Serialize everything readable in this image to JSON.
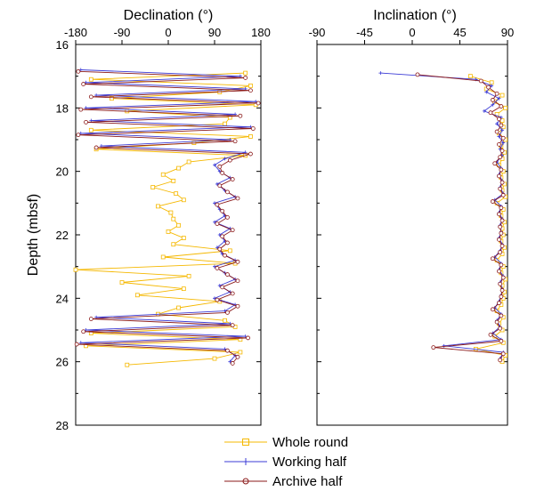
{
  "chart_data": [
    {
      "type": "line",
      "title": "Declination (°)",
      "xlabel": "Declination (°)",
      "ylabel": "Depth (mbsf)",
      "xlim": [
        -180,
        180
      ],
      "ylim": [
        16,
        28
      ],
      "y_inverted": true,
      "x_ticks": [
        -180,
        -90,
        0,
        90,
        180
      ],
      "y_ticks": [
        16,
        18,
        20,
        22,
        24,
        26,
        28
      ],
      "y_tick_labels": [
        "16",
        "18",
        "20",
        "22",
        "24",
        "26",
        "28"
      ],
      "x_tick_labels": [
        "-180",
        "-90",
        "0",
        "90",
        "180"
      ],
      "grid": false,
      "series": [
        {
          "name": "Whole round",
          "depth": [
            16.9,
            17.1,
            17.3,
            17.5,
            17.7,
            17.9,
            18.1,
            18.3,
            18.5,
            18.7,
            18.9,
            19.1,
            19.3,
            19.5,
            19.7,
            19.9,
            20.1,
            20.3,
            20.5,
            20.7,
            20.9,
            21.1,
            21.3,
            21.5,
            21.7,
            21.9,
            22.1,
            22.3,
            22.5,
            22.7,
            22.9,
            23.1,
            23.3,
            23.5,
            23.7,
            23.9,
            24.1,
            24.3,
            24.5,
            24.7,
            24.9,
            25.1,
            25.3,
            25.5,
            25.7,
            25.9,
            26.1
          ],
          "values": [
            150,
            -150,
            160,
            100,
            -110,
            170,
            -80,
            120,
            110,
            -150,
            160,
            50,
            -140,
            150,
            40,
            20,
            -10,
            10,
            -30,
            15,
            30,
            -20,
            5,
            10,
            20,
            0,
            30,
            10,
            120,
            -10,
            130,
            -180,
            40,
            -90,
            30,
            -60,
            100,
            20,
            -20,
            110,
            130,
            -150,
            140,
            -160,
            140,
            90,
            -80
          ]
        },
        {
          "name": "Working half",
          "depth": [
            16.8,
            17.0,
            17.2,
            17.4,
            17.6,
            17.8,
            18.0,
            18.2,
            18.4,
            18.6,
            18.8,
            19.0,
            19.2,
            19.4,
            19.6,
            19.8,
            20.0,
            20.2,
            20.4,
            20.6,
            20.8,
            21.0,
            21.2,
            21.4,
            21.6,
            21.8,
            22.0,
            22.2,
            22.4,
            22.6,
            22.8,
            23.0,
            23.2,
            23.4,
            23.6,
            23.8,
            24.0,
            24.2,
            24.4,
            24.6,
            24.8,
            25.0,
            25.2,
            25.4,
            25.6,
            25.8,
            26.0
          ],
          "values": [
            -170,
            140,
            -160,
            150,
            -140,
            170,
            -160,
            130,
            -150,
            160,
            -170,
            120,
            -130,
            150,
            110,
            90,
            100,
            120,
            95,
            110,
            130,
            90,
            100,
            110,
            90,
            120,
            100,
            110,
            95,
            105,
            130,
            90,
            110,
            130,
            100,
            120,
            90,
            130,
            110,
            -140,
            120,
            -160,
            150,
            -170,
            110,
            130,
            120
          ]
        },
        {
          "name": "Archive half",
          "depth": [
            16.85,
            17.05,
            17.25,
            17.45,
            17.65,
            17.85,
            18.05,
            18.25,
            18.45,
            18.65,
            18.85,
            19.05,
            19.25,
            19.45,
            19.65,
            19.85,
            20.05,
            20.25,
            20.45,
            20.65,
            20.85,
            21.05,
            21.25,
            21.45,
            21.65,
            21.85,
            22.05,
            22.25,
            22.45,
            22.65,
            22.85,
            23.05,
            23.25,
            23.45,
            23.65,
            23.85,
            24.05,
            24.25,
            24.45,
            24.65,
            24.85,
            25.05,
            25.25,
            25.45,
            25.65,
            25.85,
            26.05
          ],
          "values": [
            -175,
            150,
            -165,
            160,
            -150,
            175,
            -170,
            140,
            -160,
            165,
            -175,
            130,
            -140,
            160,
            120,
            100,
            105,
            125,
            100,
            115,
            135,
            95,
            105,
            115,
            95,
            125,
            105,
            115,
            100,
            110,
            135,
            95,
            115,
            135,
            105,
            125,
            95,
            135,
            115,
            -150,
            125,
            -165,
            155,
            -178,
            115,
            135,
            125
          ]
        }
      ]
    },
    {
      "type": "line",
      "title": "Inclination (°)",
      "xlabel": "Inclination (°)",
      "ylabel": "",
      "xlim": [
        -90,
        90
      ],
      "ylim": [
        16,
        28
      ],
      "y_inverted": true,
      "x_ticks": [
        -90,
        -45,
        0,
        45,
        90
      ],
      "x_tick_labels": [
        "-90",
        "-45",
        "0",
        "45",
        "90"
      ],
      "y_ticks": [
        16,
        18,
        20,
        22,
        24,
        26,
        28
      ],
      "grid": false,
      "series": [
        {
          "name": "Whole round",
          "depth": [
            17.0,
            17.2,
            17.4,
            17.6,
            17.8,
            18.0,
            18.2,
            18.4,
            18.6,
            18.8,
            19.0,
            19.2,
            19.4,
            19.6,
            19.8,
            20.0,
            20.2,
            20.4,
            20.6,
            20.8,
            21.0,
            21.2,
            21.4,
            21.6,
            21.8,
            22.0,
            22.2,
            22.4,
            22.6,
            22.8,
            23.0,
            23.2,
            23.4,
            23.6,
            23.8,
            24.0,
            24.2,
            24.4,
            24.6,
            24.8,
            25.0,
            25.2,
            25.4,
            25.6,
            25.8,
            26.0
          ],
          "values": [
            55,
            75,
            70,
            85,
            78,
            88,
            80,
            85,
            86,
            82,
            88,
            84,
            87,
            85,
            82,
            86,
            84,
            87,
            85,
            88,
            80,
            86,
            84,
            87,
            85,
            86,
            84,
            87,
            85,
            80,
            86,
            84,
            88,
            85,
            87,
            86,
            84,
            80,
            86,
            82,
            85,
            78,
            86,
            60,
            88,
            85
          ]
        },
        {
          "name": "Working half",
          "depth": [
            16.9,
            17.1,
            17.3,
            17.5,
            17.7,
            17.9,
            18.1,
            18.3,
            18.5,
            18.7,
            18.9,
            19.1,
            19.3,
            19.5,
            19.7,
            19.9,
            20.1,
            20.3,
            20.5,
            20.7,
            20.9,
            21.1,
            21.3,
            21.5,
            21.7,
            21.9,
            22.1,
            22.3,
            22.5,
            22.7,
            22.9,
            23.1,
            23.3,
            23.5,
            23.7,
            23.9,
            24.1,
            24.3,
            24.5,
            24.7,
            24.9,
            25.1,
            25.3,
            25.5,
            25.7,
            25.9
          ],
          "values": [
            -30,
            60,
            75,
            70,
            82,
            76,
            68,
            84,
            80,
            85,
            82,
            86,
            83,
            85,
            80,
            84,
            82,
            85,
            83,
            86,
            78,
            84,
            82,
            85,
            83,
            84,
            82,
            85,
            83,
            78,
            84,
            82,
            86,
            83,
            85,
            84,
            82,
            78,
            84,
            80,
            83,
            76,
            84,
            30,
            86,
            83
          ]
        },
        {
          "name": "Archive half",
          "depth": [
            16.95,
            17.15,
            17.35,
            17.55,
            17.75,
            17.95,
            18.15,
            18.35,
            18.55,
            18.75,
            18.95,
            19.15,
            19.35,
            19.55,
            19.75,
            19.95,
            20.15,
            20.35,
            20.55,
            20.75,
            20.95,
            21.15,
            21.35,
            21.55,
            21.75,
            21.95,
            22.15,
            22.35,
            22.55,
            22.75,
            22.95,
            23.15,
            23.35,
            23.55,
            23.75,
            23.95,
            24.15,
            24.35,
            24.55,
            24.75,
            24.95,
            25.15,
            25.35,
            25.55,
            25.75,
            25.95
          ],
          "values": [
            5,
            65,
            72,
            80,
            76,
            84,
            74,
            82,
            84,
            80,
            86,
            82,
            85,
            83,
            78,
            84,
            82,
            85,
            83,
            86,
            76,
            84,
            82,
            85,
            83,
            84,
            82,
            85,
            83,
            76,
            84,
            82,
            86,
            83,
            85,
            84,
            82,
            76,
            84,
            80,
            83,
            74,
            84,
            20,
            86,
            83
          ]
        }
      ]
    }
  ],
  "legend": [
    {
      "label": "Whole round",
      "color": "#f5b800",
      "marker": "open-square"
    },
    {
      "label": "Working half",
      "color": "#3b3bd6",
      "marker": "plus"
    },
    {
      "label": "Archive half",
      "color": "#8b1a1a",
      "marker": "open-circle"
    }
  ]
}
